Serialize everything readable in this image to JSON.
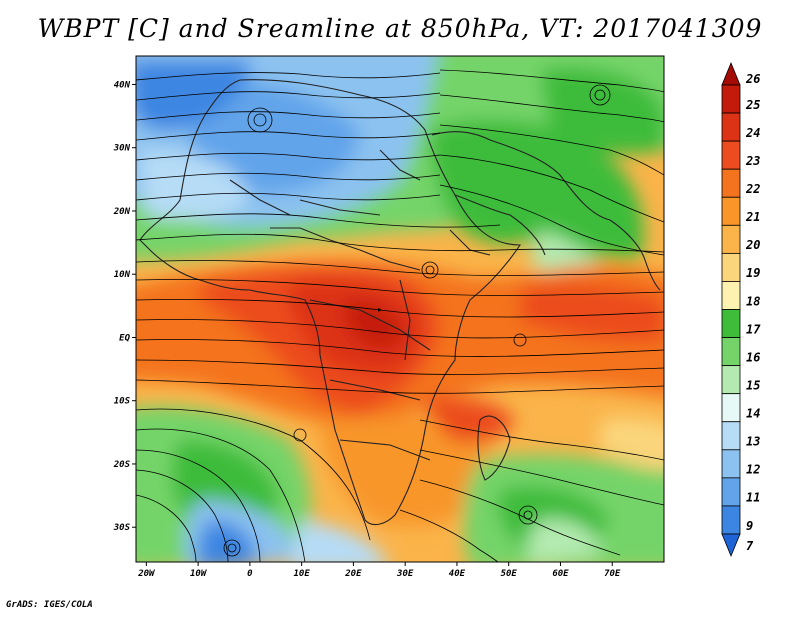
{
  "title": "WBPT [C] and Sreamline at 850hPa, VT: 2017041309",
  "credit": "GrADS: IGES/COLA",
  "map": {
    "lon_range": [
      -22,
      80
    ],
    "lat_range": [
      -35.5,
      44.5
    ],
    "lat_ticks": [
      {
        "value": 40,
        "label": "40N"
      },
      {
        "value": 30,
        "label": "30N"
      },
      {
        "value": 20,
        "label": "20N"
      },
      {
        "value": 10,
        "label": "10N"
      },
      {
        "value": 0,
        "label": "EQ"
      },
      {
        "value": -10,
        "label": "10S"
      },
      {
        "value": -20,
        "label": "20S"
      },
      {
        "value": -30,
        "label": "30S"
      }
    ],
    "lon_ticks": [
      {
        "value": -20,
        "label": "20W"
      },
      {
        "value": -10,
        "label": "10W"
      },
      {
        "value": 0,
        "label": "0"
      },
      {
        "value": 10,
        "label": "10E"
      },
      {
        "value": 20,
        "label": "20E"
      },
      {
        "value": 30,
        "label": "30E"
      },
      {
        "value": 40,
        "label": "40E"
      },
      {
        "value": 50,
        "label": "50E"
      },
      {
        "value": 60,
        "label": "60E"
      },
      {
        "value": 70,
        "label": "70E"
      }
    ]
  },
  "colorbar": {
    "levels": [
      {
        "label": "26",
        "color": "#a50b05"
      },
      {
        "label": "25",
        "color": "#c41a0c"
      },
      {
        "label": "24",
        "color": "#dc3216"
      },
      {
        "label": "23",
        "color": "#ec4c1f"
      },
      {
        "label": "22",
        "color": "#f4731f"
      },
      {
        "label": "21",
        "color": "#f8962a"
      },
      {
        "label": "20",
        "color": "#fab44a"
      },
      {
        "label": "19",
        "color": "#fbd57c"
      },
      {
        "label": "18",
        "color": "#fdf2b0"
      },
      {
        "label": "17",
        "color": "#3ebc3a"
      },
      {
        "label": "16",
        "color": "#74d469"
      },
      {
        "label": "15",
        "color": "#b4eab0"
      },
      {
        "label": "14",
        "color": "#e6f9f6"
      },
      {
        "label": "13",
        "color": "#b6dcf6"
      },
      {
        "label": "12",
        "color": "#8cc2f0"
      },
      {
        "label": "11",
        "color": "#62a4ea"
      },
      {
        "label": "9",
        "color": "#3c86e2"
      },
      {
        "label": "7",
        "color": "#1e64d6"
      }
    ]
  }
}
